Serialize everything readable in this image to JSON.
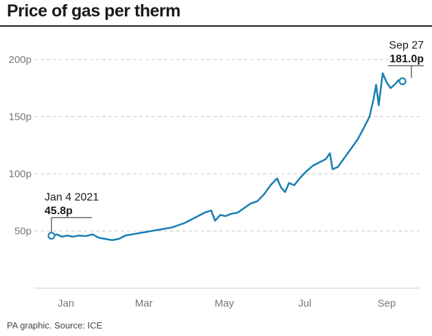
{
  "title": "Price of gas per therm",
  "source": "PA graphic. Source: ICE",
  "chart_data": {
    "type": "line",
    "title": "Price of gas per therm",
    "xlabel": "",
    "ylabel": "",
    "x_ticks": [
      "Jan",
      "Mar",
      "May",
      "Jul",
      "Sep"
    ],
    "y_ticks": [
      "50p",
      "100p",
      "150p",
      "200p"
    ],
    "y_tick_values": [
      50,
      100,
      150,
      200
    ],
    "ylim": [
      0,
      215
    ],
    "xlim": [
      "2020-12-22",
      "2021-10-10"
    ],
    "grid": "horizontal dashed",
    "line_color": "#1a7fb3",
    "series": [
      {
        "x": [
          "2021-01-04",
          "2021-01-08",
          "2021-01-12",
          "2021-01-16",
          "2021-01-20",
          "2021-01-25",
          "2021-01-30",
          "2021-02-04",
          "2021-02-09",
          "2021-02-14",
          "2021-02-19",
          "2021-02-24",
          "2021-03-01",
          "2021-03-06",
          "2021-03-11",
          "2021-03-16",
          "2021-03-21",
          "2021-03-26",
          "2021-03-31",
          "2021-04-05",
          "2021-04-10",
          "2021-04-15",
          "2021-04-20",
          "2021-04-25",
          "2021-04-30",
          "2021-05-05",
          "2021-05-08",
          "2021-05-12",
          "2021-05-16",
          "2021-05-20",
          "2021-05-25",
          "2021-05-30",
          "2021-06-04",
          "2021-06-09",
          "2021-06-14",
          "2021-06-19",
          "2021-06-24",
          "2021-06-27",
          "2021-06-30",
          "2021-07-03",
          "2021-07-07",
          "2021-07-11",
          "2021-07-16",
          "2021-07-21",
          "2021-07-26",
          "2021-07-31",
          "2021-08-03",
          "2021-08-05",
          "2021-08-09",
          "2021-08-14",
          "2021-08-19",
          "2021-08-24",
          "2021-08-29",
          "2021-09-02",
          "2021-09-05",
          "2021-09-07",
          "2021-09-09",
          "2021-09-12",
          "2021-09-15",
          "2021-09-18",
          "2021-09-21",
          "2021-09-24",
          "2021-09-27"
        ],
        "y": [
          45.8,
          47,
          45,
          46,
          45,
          46,
          45.5,
          47,
          44,
          43,
          42,
          43,
          46,
          47,
          48,
          49,
          50,
          51,
          52,
          53,
          55,
          57,
          60,
          63,
          66,
          68,
          59,
          64,
          63,
          65,
          66,
          70,
          74,
          76,
          82,
          90,
          96,
          88,
          84,
          92,
          90,
          96,
          102,
          107,
          110,
          113,
          118,
          104,
          106,
          114,
          122,
          130,
          141,
          150,
          165,
          178,
          160,
          188,
          180,
          175,
          178,
          182,
          181.0
        ]
      }
    ],
    "annotations": [
      {
        "label": "Jan 4 2021",
        "value": "45.8p",
        "x": "2021-01-04",
        "y": 45.8
      },
      {
        "label": "Sep 27",
        "value": "181.0p",
        "x": "2021-09-27",
        "y": 181.0
      }
    ]
  }
}
